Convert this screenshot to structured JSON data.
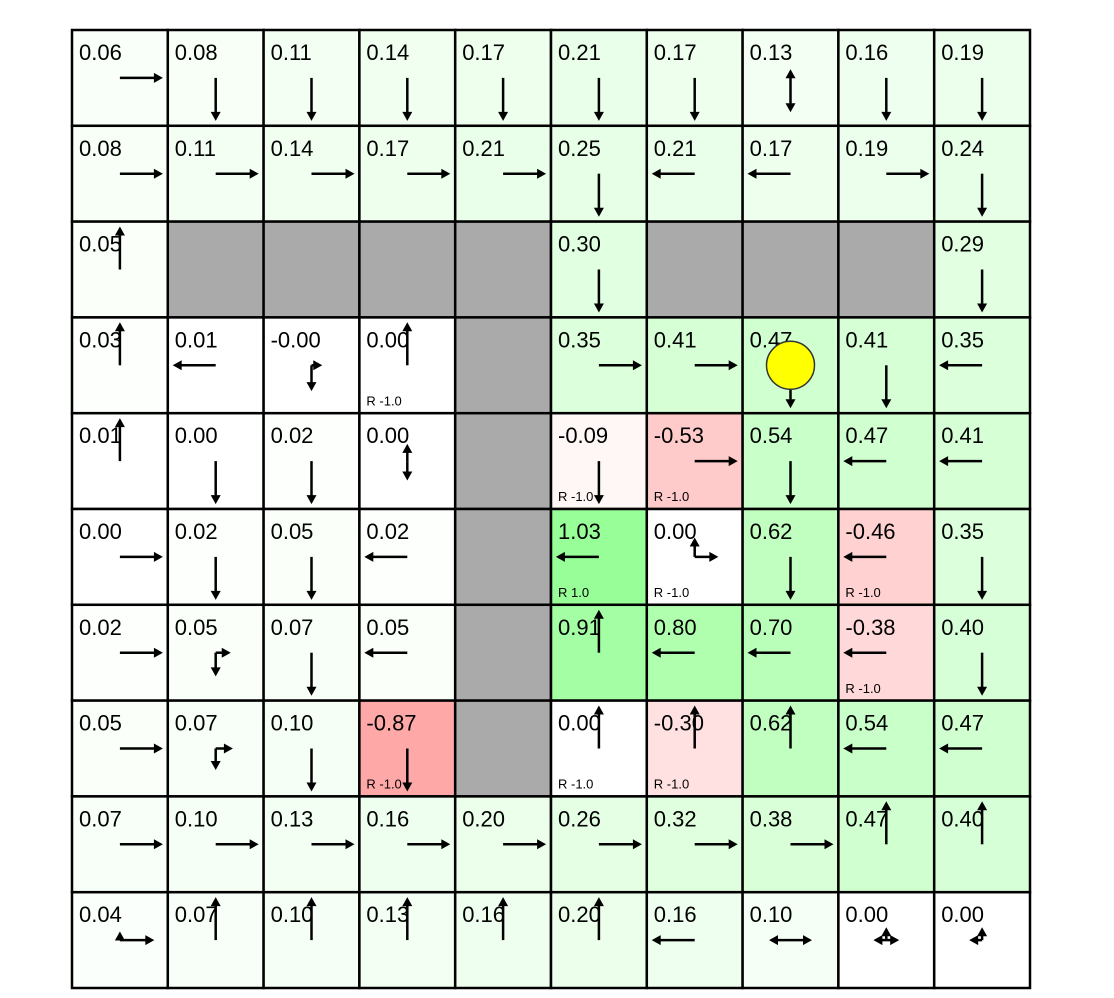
{
  "grid": {
    "rows": [
      [
        {
          "v": "0.06",
          "p": "r"
        },
        {
          "v": "0.08",
          "p": "d"
        },
        {
          "v": "0.11",
          "p": "d"
        },
        {
          "v": "0.14",
          "p": "d"
        },
        {
          "v": "0.17",
          "p": "d"
        },
        {
          "v": "0.21",
          "p": "d"
        },
        {
          "v": "0.17",
          "p": "d"
        },
        {
          "v": "0.13",
          "p": "u:0.2,d:0.8"
        },
        {
          "v": "0.16",
          "p": "d"
        },
        {
          "v": "0.19",
          "p": "d"
        }
      ],
      [
        {
          "v": "0.08",
          "p": "r"
        },
        {
          "v": "0.11",
          "p": "r"
        },
        {
          "v": "0.14",
          "p": "r"
        },
        {
          "v": "0.17",
          "p": "r"
        },
        {
          "v": "0.21",
          "p": "r"
        },
        {
          "v": "0.25",
          "p": "d"
        },
        {
          "v": "0.21",
          "p": "l"
        },
        {
          "v": "0.17",
          "p": "l"
        },
        {
          "v": "0.19",
          "p": "r"
        },
        {
          "v": "0.24",
          "p": "d"
        }
      ],
      [
        {
          "v": "0.05",
          "p": "u"
        },
        {
          "wall": true
        },
        {
          "wall": true
        },
        {
          "wall": true
        },
        {
          "wall": true
        },
        {
          "v": "0.30",
          "p": "d"
        },
        {
          "wall": true
        },
        {
          "wall": true
        },
        {
          "wall": true
        },
        {
          "v": "0.29",
          "p": "d"
        }
      ],
      [
        {
          "v": "0.03",
          "p": "u"
        },
        {
          "v": "0.01",
          "p": "l"
        },
        {
          "v": "-0.00",
          "p": "r:0.25,d:0.6"
        },
        {
          "v": "0.00",
          "p": "u",
          "r": "R -1.0"
        },
        {
          "wall": true
        },
        {
          "v": "0.35",
          "p": "r"
        },
        {
          "v": "0.41",
          "p": "r"
        },
        {
          "v": "0.47",
          "p": "d"
        },
        {
          "v": "0.41",
          "p": "d"
        },
        {
          "v": "0.35",
          "p": "l"
        }
      ],
      [
        {
          "v": "0.01",
          "p": "u"
        },
        {
          "v": "0.00",
          "p": "d"
        },
        {
          "v": "0.02",
          "p": "d"
        },
        {
          "v": "0.00",
          "p": "u:0.4,d:0.45"
        },
        {
          "wall": true
        },
        {
          "v": "-0.09",
          "p": "d",
          "r": "R -1.0"
        },
        {
          "v": "-0.53",
          "p": "r",
          "r": "R -1.0"
        },
        {
          "v": "0.54",
          "p": "d"
        },
        {
          "v": "0.47",
          "p": "l"
        },
        {
          "v": "0.41",
          "p": "l"
        }
      ],
      [
        {
          "v": "0.00",
          "p": "r"
        },
        {
          "v": "0.02",
          "p": "d"
        },
        {
          "v": "0.05",
          "p": "d"
        },
        {
          "v": "0.02",
          "p": "l"
        },
        {
          "wall": true
        },
        {
          "v": "1.03",
          "p": "l",
          "r": "R 1.0"
        },
        {
          "v": "0.00",
          "p": "u:0.45,r:0.55",
          "r": "R -1.0"
        },
        {
          "v": "0.62",
          "p": "d"
        },
        {
          "v": "-0.46",
          "p": "l",
          "r": "R -1.0"
        },
        {
          "v": "0.35",
          "p": "d"
        }
      ],
      [
        {
          "v": "0.02",
          "p": "r"
        },
        {
          "v": "0.05",
          "p": "r:0.35,d:0.55"
        },
        {
          "v": "0.07",
          "p": "d"
        },
        {
          "v": "0.05",
          "p": "l"
        },
        {
          "wall": true
        },
        {
          "v": "0.91",
          "p": "u"
        },
        {
          "v": "0.80",
          "p": "l"
        },
        {
          "v": "0.70",
          "p": "l"
        },
        {
          "v": "-0.38",
          "p": "l",
          "r": "R -1.0"
        },
        {
          "v": "0.40",
          "p": "d"
        }
      ],
      [
        {
          "v": "0.05",
          "p": "r"
        },
        {
          "v": "0.07",
          "p": "r:0.4,d:0.5"
        },
        {
          "v": "0.10",
          "p": "d"
        },
        {
          "v": "-0.87",
          "p": "d",
          "r": "R -1.0"
        },
        {
          "wall": true
        },
        {
          "v": "0.00",
          "p": "u",
          "r": "R -1.0"
        },
        {
          "v": "-0.30",
          "p": "u",
          "r": "R -1.0"
        },
        {
          "v": "0.62",
          "p": "u"
        },
        {
          "v": "0.54",
          "p": "l"
        },
        {
          "v": "0.47",
          "p": "l"
        }
      ],
      [
        {
          "v": "0.07",
          "p": "r"
        },
        {
          "v": "0.10",
          "p": "r"
        },
        {
          "v": "0.13",
          "p": "r"
        },
        {
          "v": "0.16",
          "p": "r"
        },
        {
          "v": "0.20",
          "p": "r"
        },
        {
          "v": "0.26",
          "p": "r"
        },
        {
          "v": "0.32",
          "p": "r"
        },
        {
          "v": "0.38",
          "p": "r"
        },
        {
          "v": "0.47",
          "p": "u"
        },
        {
          "v": "0.40",
          "p": "u"
        }
      ],
      [
        {
          "v": "0.04",
          "p": "u:0.2,r:0.8"
        },
        {
          "v": "0.07",
          "p": "u"
        },
        {
          "v": "0.10",
          "p": "u"
        },
        {
          "v": "0.13",
          "p": "u"
        },
        {
          "v": "0.16",
          "p": "u"
        },
        {
          "v": "0.20",
          "p": "u"
        },
        {
          "v": "0.16",
          "p": "l"
        },
        {
          "v": "0.10",
          "p": "l:0.5,r:0.5"
        },
        {
          "v": "0.00",
          "p": "u:0.3,l:0.3,r:0.3"
        },
        {
          "v": "0.00",
          "p": "u:0.3,l:0.3"
        }
      ]
    ]
  },
  "agent": {
    "row": 3,
    "col": 7,
    "color": "#ffff00"
  },
  "colors": {
    "wall": "#aaaaaa",
    "positive": "green",
    "negative": "red"
  }
}
